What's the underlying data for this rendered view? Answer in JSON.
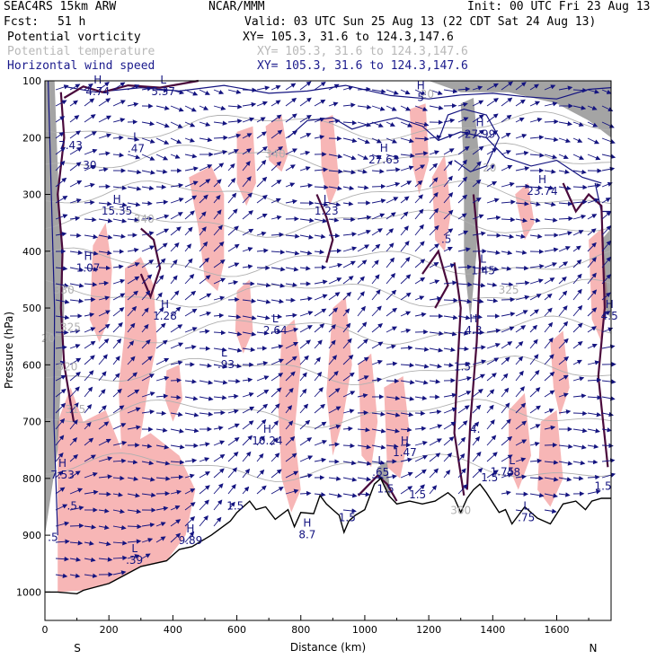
{
  "header": {
    "model": "SEAC4RS 15km ARW",
    "center": "NCAR/MMM",
    "init": "Init: 00 UTC Fri 23 Aug 13",
    "fcst_label": "Fcst:",
    "fcst_value": "51 h",
    "valid": "Valid: 03 UTC Sun 25 Aug 13 (22 CDT Sat 24 Aug 13)",
    "fields": [
      {
        "name": "Potential vorticity",
        "xy": "XY= 105.3, 31.6 to 124.3,147.6"
      },
      {
        "name": "Potential temperature",
        "xy": "XY= 105.3, 31.6 to 124.3,147.6"
      },
      {
        "name": "Horizontal wind speed",
        "xy": "XY= 105.3, 31.6 to 124.3,147.6"
      }
    ]
  },
  "colors": {
    "pv_shade_pink": "#f7b6b6",
    "pv_contour": "#4a0a3c",
    "theta_contour": "#b0b0b0",
    "wind_contour": "#141480",
    "wind_vector": "#141480",
    "high_wind_shade": "#5a5a5a"
  },
  "chart_data": {
    "type": "cross-section",
    "xlabel": "Distance (km)",
    "ylabel": "Pressure (hPa)",
    "x_ticks": [
      "0",
      "200",
      "400",
      "600",
      "800",
      "1000",
      "1200",
      "1400",
      "1600"
    ],
    "y_ticks": [
      "100",
      "200",
      "300",
      "400",
      "500",
      "600",
      "700",
      "800",
      "900",
      "1000"
    ],
    "xlim": [
      0,
      1770
    ],
    "ylim": [
      1050,
      100
    ],
    "endpoint_left": "S",
    "endpoint_right": "N",
    "terrain": [
      [
        0,
        1000
      ],
      [
        40,
        1000
      ],
      [
        100,
        1003
      ],
      [
        120,
        997
      ],
      [
        200,
        985
      ],
      [
        300,
        955
      ],
      [
        380,
        945
      ],
      [
        420,
        925
      ],
      [
        460,
        920
      ],
      [
        520,
        900
      ],
      [
        580,
        875
      ],
      [
        600,
        860
      ],
      [
        640,
        840
      ],
      [
        660,
        855
      ],
      [
        690,
        850
      ],
      [
        720,
        872
      ],
      [
        760,
        855
      ],
      [
        780,
        885
      ],
      [
        800,
        860
      ],
      [
        840,
        862
      ],
      [
        860,
        830
      ],
      [
        880,
        845
      ],
      [
        900,
        855
      ],
      [
        920,
        865
      ],
      [
        935,
        895
      ],
      [
        950,
        875
      ],
      [
        970,
        865
      ],
      [
        1000,
        855
      ],
      [
        1030,
        810
      ],
      [
        1050,
        800
      ],
      [
        1075,
        830
      ],
      [
        1100,
        845
      ],
      [
        1140,
        840
      ],
      [
        1180,
        845
      ],
      [
        1220,
        840
      ],
      [
        1260,
        825
      ],
      [
        1280,
        835
      ],
      [
        1300,
        860
      ],
      [
        1320,
        835
      ],
      [
        1340,
        820
      ],
      [
        1360,
        810
      ],
      [
        1380,
        825
      ],
      [
        1420,
        860
      ],
      [
        1440,
        855
      ],
      [
        1460,
        880
      ],
      [
        1500,
        850
      ],
      [
        1540,
        870
      ],
      [
        1580,
        880
      ],
      [
        1620,
        845
      ],
      [
        1660,
        840
      ],
      [
        1690,
        855
      ],
      [
        1710,
        840
      ],
      [
        1740,
        835
      ],
      [
        1770,
        835
      ]
    ],
    "theta_labels": [
      {
        "text": "340",
        "x": 720,
        "p": 235
      },
      {
        "text": "340",
        "x": 310,
        "p": 350
      },
      {
        "text": "330",
        "x": 60,
        "p": 475
      },
      {
        "text": "325",
        "x": 1450,
        "p": 475
      },
      {
        "text": "325",
        "x": 80,
        "p": 540
      },
      {
        "text": "320",
        "x": 70,
        "p": 610
      },
      {
        "text": "315",
        "x": 95,
        "p": 685
      },
      {
        "text": "300",
        "x": 1300,
        "p": 863
      },
      {
        "text": "20",
        "x": 1195,
        "p": 130
      },
      {
        "text": "20",
        "x": 1390,
        "p": 260
      },
      {
        "text": "20",
        "x": 10,
        "p": 560
      }
    ],
    "extrema": [
      {
        "type": "H",
        "value": "4.74",
        "x": 165,
        "p": 105
      },
      {
        "type": "L",
        "value": "5.37",
        "x": 370,
        "p": 105
      },
      {
        "type": "H",
        "value": "5",
        "x": 1175,
        "p": 115
      },
      {
        "type": "H",
        "value": "27.99",
        "x": 1360,
        "p": 180
      },
      {
        "type": "L",
        "value": ".47",
        "x": 285,
        "p": 205
      },
      {
        "type": "H",
        "value": "27.63",
        "x": 1060,
        "p": 225
      },
      {
        "type": "H",
        "value": "23.74",
        "x": 1555,
        "p": 280
      },
      {
        "type": "H",
        "value": "15.35",
        "x": 225,
        "p": 315
      },
      {
        "type": "L",
        "value": "1.23",
        "x": 880,
        "p": 315
      },
      {
        "type": "H",
        "value": "1.07",
        "x": 135,
        "p": 415
      },
      {
        "type": "L",
        "value": "1.45",
        "x": 1370,
        "p": 420
      },
      {
        "type": "H",
        "value": "1.28",
        "x": 375,
        "p": 500
      },
      {
        "type": "L",
        "value": "2.64",
        "x": 720,
        "p": 525
      },
      {
        "type": "H",
        "value": "4.3",
        "x": 1340,
        "p": 525
      },
      {
        "type": "H",
        "value": "4.5",
        "x": 1765,
        "p": 500
      },
      {
        "type": "L",
        "value": "-.93",
        "x": 560,
        "p": 585
      },
      {
        "type": "H",
        "value": "10.24",
        "x": 695,
        "p": 720
      },
      {
        "type": "H",
        "value": "1.47",
        "x": 1125,
        "p": 740
      },
      {
        "type": "L",
        "value": ".65",
        "x": 1050,
        "p": 775
      },
      {
        "type": "L",
        "value": ".48",
        "x": 1460,
        "p": 775
      },
      {
        "type": "H",
        "value": "7.53",
        "x": 55,
        "p": 780
      },
      {
        "type": "L",
        "value": ".75",
        "x": 1505,
        "p": 855
      },
      {
        "type": "H",
        "value": "9.89",
        "x": 455,
        "p": 895
      },
      {
        "type": "H",
        "value": "8.7",
        "x": 820,
        "p": 885
      },
      {
        "type": "L",
        "value": ".39",
        "x": 280,
        "p": 930
      }
    ],
    "plain_labels": [
      {
        "text": "7.43",
        "x": 80,
        "p": 220
      },
      {
        "text": "30",
        "x": 140,
        "p": 255
      },
      {
        "text": ".5",
        "x": 1255,
        "p": 385
      },
      {
        "text": "1.5",
        "x": 1305,
        "p": 610
      },
      {
        "text": "4.",
        "x": 1345,
        "p": 720
      },
      {
        "text": "1.5",
        "x": 945,
        "p": 875
      },
      {
        "text": "1.5",
        "x": 1745,
        "p": 820
      },
      {
        "text": "1.5",
        "x": 1065,
        "p": 825
      },
      {
        "text": "1.5",
        "x": 1165,
        "p": 835
      },
      {
        "text": "1.5",
        "x": 595,
        "p": 855
      },
      {
        "text": ".5",
        "x": 85,
        "p": 855
      },
      {
        "text": "1.5",
        "x": 1390,
        "p": 805
      },
      {
        "text": "1.75",
        "x": 1430,
        "p": 795
      },
      {
        "text": ".5",
        "x": 25,
        "p": 910
      }
    ]
  }
}
